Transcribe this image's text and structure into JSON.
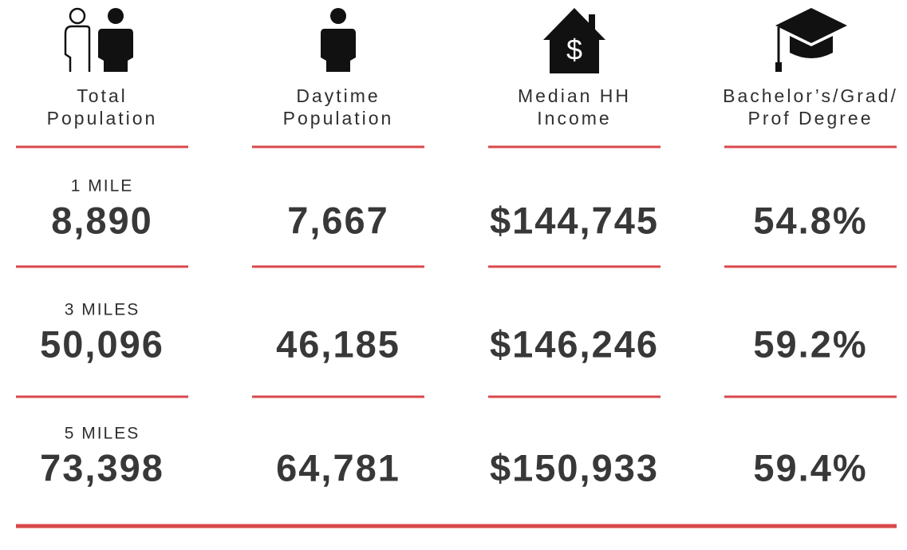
{
  "columns": [
    {
      "header": [
        "Total",
        "Population"
      ]
    },
    {
      "header": [
        "Daytime",
        "Population"
      ]
    },
    {
      "header": [
        "Median HH",
        "Income"
      ]
    },
    {
      "header": [
        "Bachelor’s/Grad/",
        "Prof Degree"
      ]
    }
  ],
  "rows": [
    {
      "label": "1 MILE",
      "values": [
        "8,890",
        "7,667",
        "$144,745",
        "54.8%"
      ]
    },
    {
      "label": "3 MILES",
      "values": [
        "50,096",
        "46,185",
        "$146,246",
        "59.2%"
      ]
    },
    {
      "label": "5 MILES",
      "values": [
        "73,398",
        "64,781",
        "$150,933",
        "59.4%"
      ]
    }
  ]
}
